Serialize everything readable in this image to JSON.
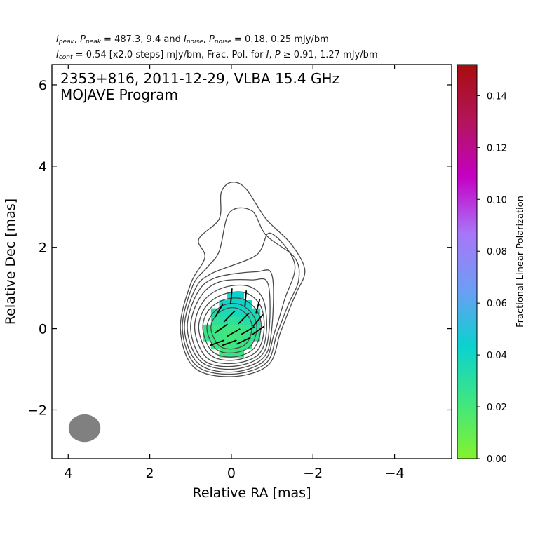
{
  "header": {
    "i_peak_label": "peak",
    "p_peak_label": "peak",
    "i_noise_label": "noise",
    "p_noise_label": "noise",
    "line1_values": " = 487.3, 9.4 and ",
    "line1_noise_values": " = 0.18, 0.25 mJy/bm",
    "cont_label": "cont",
    "line2_text": " = 0.54 [x2.0 steps] mJy/bm, Frac. Pol. for ",
    "line2_tail": " ≥ 0.91, 1.27 mJy/bm"
  },
  "chart_data": {
    "type": "heatmap",
    "title": "2353+816, 2011-12-29, VLBA 15.4 GHz",
    "subtitle": "MOJAVE Program",
    "xlabel": "Relative RA [mas]",
    "ylabel": "Relative Dec [mas]",
    "xlim": [
      4.4,
      -5.4
    ],
    "ylim": [
      -3.2,
      6.5
    ],
    "x_inverted": true,
    "xticks": [
      4,
      2,
      0,
      -2,
      -4
    ],
    "xtick_labels": [
      "4",
      "2",
      "0",
      "−2",
      "−4"
    ],
    "yticks": [
      6,
      4,
      2,
      0,
      -2
    ],
    "ytick_labels": [
      "6",
      "4",
      "2",
      "0",
      "−2"
    ],
    "colorbar": {
      "label": "Fractional Linear Polarization",
      "range": [
        0.0,
        0.152
      ],
      "ticks": [
        0.0,
        0.02,
        0.04,
        0.06,
        0.08,
        0.1,
        0.12,
        0.14
      ],
      "tick_labels": [
        "0.00",
        "0.02",
        "0.04",
        "0.06",
        "0.08",
        "0.10",
        "0.12",
        "0.14"
      ],
      "colors": [
        "#84f22e",
        "#3fe681",
        "#0ad2cf",
        "#6d9df5",
        "#a876f8",
        "#c500c4",
        "#b3155a",
        "#a70d0d"
      ]
    },
    "beam": {
      "x": 3.6,
      "y": -2.45,
      "major_mas": 0.78,
      "minor_mas": 0.68,
      "color": "#808080"
    },
    "contours": [
      [
        [
          0.5,
          0.0
        ],
        [
          0.38,
          0.32
        ],
        [
          0.1,
          0.5
        ],
        [
          -0.2,
          0.48
        ],
        [
          -0.45,
          0.25
        ],
        [
          -0.5,
          -0.05
        ],
        [
          -0.35,
          -0.38
        ],
        [
          0.0,
          -0.5
        ],
        [
          0.32,
          -0.4
        ]
      ],
      [
        [
          0.6,
          0.0
        ],
        [
          0.45,
          0.38
        ],
        [
          0.12,
          0.6
        ],
        [
          -0.25,
          0.58
        ],
        [
          -0.55,
          0.3
        ],
        [
          -0.62,
          -0.05
        ],
        [
          -0.45,
          -0.45
        ],
        [
          0.0,
          -0.6
        ],
        [
          0.4,
          -0.48
        ]
      ],
      [
        [
          0.7,
          0.0
        ],
        [
          0.55,
          0.46
        ],
        [
          0.15,
          0.72
        ],
        [
          -0.3,
          0.72
        ],
        [
          -0.65,
          0.4
        ],
        [
          -0.72,
          -0.05
        ],
        [
          -0.52,
          -0.52
        ],
        [
          0.0,
          -0.7
        ],
        [
          0.48,
          -0.55
        ]
      ],
      [
        [
          0.8,
          0.0
        ],
        [
          0.62,
          0.55
        ],
        [
          0.18,
          0.85
        ],
        [
          -0.35,
          0.88
        ],
        [
          -0.72,
          0.55
        ],
        [
          -0.8,
          -0.05
        ],
        [
          -0.6,
          -0.58
        ],
        [
          0.0,
          -0.78
        ],
        [
          0.55,
          -0.62
        ]
      ],
      [
        [
          0.9,
          0.0
        ],
        [
          0.7,
          0.65
        ],
        [
          0.22,
          1.0
        ],
        [
          -0.4,
          1.05
        ],
        [
          -0.78,
          0.72
        ],
        [
          -0.86,
          -0.08
        ],
        [
          -0.65,
          -0.65
        ],
        [
          0.0,
          -0.86
        ],
        [
          0.62,
          -0.7
        ]
      ],
      [
        [
          1.0,
          0.0
        ],
        [
          0.78,
          0.75
        ],
        [
          0.3,
          1.15
        ],
        [
          -0.5,
          1.2
        ],
        [
          -0.9,
          1.1
        ],
        [
          -0.92,
          -0.1
        ],
        [
          -0.7,
          -0.7
        ],
        [
          0.0,
          -0.93
        ],
        [
          0.7,
          -0.76
        ]
      ],
      [
        [
          1.08,
          0.0
        ],
        [
          0.85,
          0.85
        ],
        [
          0.4,
          1.25
        ],
        [
          -0.6,
          1.4
        ],
        [
          -1.0,
          1.3
        ],
        [
          -0.98,
          -0.1
        ],
        [
          -0.75,
          -0.75
        ],
        [
          0.0,
          -1.0
        ],
        [
          0.76,
          -0.8
        ]
      ],
      [
        [
          1.15,
          0.0
        ],
        [
          0.9,
          0.95
        ],
        [
          0.5,
          1.35
        ],
        [
          -0.6,
          1.8
        ],
        [
          -0.95,
          2.35
        ],
        [
          -1.55,
          1.6
        ],
        [
          -1.3,
          0.7
        ],
        [
          -1.05,
          -0.12
        ],
        [
          -0.8,
          -0.8
        ],
        [
          0.0,
          -1.07
        ],
        [
          0.82,
          -0.85
        ]
      ],
      [
        [
          1.2,
          0.0
        ],
        [
          0.95,
          1.05
        ],
        [
          0.6,
          1.5
        ],
        [
          0.3,
          1.9
        ],
        [
          0.05,
          2.85
        ],
        [
          -0.5,
          2.9
        ],
        [
          -0.85,
          2.3
        ],
        [
          -1.55,
          1.75
        ],
        [
          -1.65,
          1.2
        ],
        [
          -1.4,
          0.6
        ],
        [
          -1.12,
          -0.12
        ],
        [
          -0.85,
          -0.85
        ],
        [
          0.0,
          -1.12
        ],
        [
          0.87,
          -0.9
        ]
      ],
      [
        [
          1.25,
          0.0
        ],
        [
          1.0,
          1.1
        ],
        [
          0.65,
          1.75
        ],
        [
          0.8,
          2.2
        ],
        [
          0.3,
          2.7
        ],
        [
          0.25,
          3.35
        ],
        [
          0.0,
          3.6
        ],
        [
          -0.35,
          3.45
        ],
        [
          -0.85,
          2.7
        ],
        [
          -1.45,
          2.1
        ],
        [
          -1.8,
          1.45
        ],
        [
          -1.6,
          0.9
        ],
        [
          -1.45,
          0.55
        ],
        [
          -1.2,
          -0.1
        ],
        [
          -0.9,
          -0.9
        ],
        [
          0.0,
          -1.18
        ],
        [
          0.92,
          -0.95
        ]
      ]
    ],
    "polarization_pixels": [
      {
        "x": 0.0,
        "y": 0.0,
        "v": 0.022
      },
      {
        "x": -0.2,
        "y": 0.0,
        "v": 0.022
      },
      {
        "x": 0.2,
        "y": 0.0,
        "v": 0.022
      },
      {
        "x": 0.0,
        "y": 0.2,
        "v": 0.028
      },
      {
        "x": -0.2,
        "y": 0.2,
        "v": 0.03
      },
      {
        "x": 0.2,
        "y": 0.2,
        "v": 0.03
      },
      {
        "x": 0.0,
        "y": -0.2,
        "v": 0.02
      },
      {
        "x": -0.2,
        "y": -0.2,
        "v": 0.022
      },
      {
        "x": 0.2,
        "y": -0.2,
        "v": 0.022
      },
      {
        "x": -0.4,
        "y": 0.0,
        "v": 0.025
      },
      {
        "x": 0.4,
        "y": 0.0,
        "v": 0.022
      },
      {
        "x": -0.6,
        "y": 0.0,
        "v": 0.028
      },
      {
        "x": 0.4,
        "y": -0.2,
        "v": 0.023
      },
      {
        "x": -0.4,
        "y": -0.2,
        "v": 0.024
      },
      {
        "x": -0.6,
        "y": -0.2,
        "v": 0.026
      },
      {
        "x": 0.4,
        "y": 0.2,
        "v": 0.028
      },
      {
        "x": -0.4,
        "y": 0.2,
        "v": 0.032
      },
      {
        "x": -0.6,
        "y": 0.2,
        "v": 0.034
      },
      {
        "x": 0.0,
        "y": 0.4,
        "v": 0.036
      },
      {
        "x": -0.2,
        "y": 0.4,
        "v": 0.038
      },
      {
        "x": 0.2,
        "y": 0.4,
        "v": 0.035
      },
      {
        "x": -0.4,
        "y": 0.4,
        "v": 0.038
      },
      {
        "x": 0.4,
        "y": 0.4,
        "v": 0.033
      },
      {
        "x": 0.0,
        "y": 0.6,
        "v": 0.04
      },
      {
        "x": -0.2,
        "y": 0.6,
        "v": 0.042
      },
      {
        "x": 0.2,
        "y": 0.6,
        "v": 0.04
      },
      {
        "x": -0.4,
        "y": 0.6,
        "v": 0.04
      },
      {
        "x": 0.0,
        "y": 0.8,
        "v": 0.042
      },
      {
        "x": -0.2,
        "y": 0.8,
        "v": 0.044
      },
      {
        "x": 0.0,
        "y": -0.4,
        "v": 0.022
      },
      {
        "x": -0.2,
        "y": -0.4,
        "v": 0.022
      },
      {
        "x": 0.2,
        "y": -0.4,
        "v": 0.02
      },
      {
        "x": -0.4,
        "y": -0.4,
        "v": 0.024
      },
      {
        "x": 0.4,
        "y": -0.4,
        "v": 0.022
      },
      {
        "x": 0.0,
        "y": -0.6,
        "v": 0.024
      },
      {
        "x": -0.2,
        "y": -0.6,
        "v": 0.024
      },
      {
        "x": 0.2,
        "y": -0.6,
        "v": 0.022
      },
      {
        "x": -0.6,
        "y": 0.4,
        "v": 0.036
      },
      {
        "x": 0.6,
        "y": 0.0,
        "v": 0.024
      },
      {
        "x": 0.6,
        "y": -0.2,
        "v": 0.024
      }
    ],
    "evpa_sticks": [
      {
        "x": 0.0,
        "y": 0.8,
        "angle_deg": 85
      },
      {
        "x": -0.35,
        "y": 0.75,
        "angle_deg": 85
      },
      {
        "x": -0.65,
        "y": 0.55,
        "angle_deg": 75
      },
      {
        "x": 0.3,
        "y": 0.45,
        "angle_deg": 60
      },
      {
        "x": 0.05,
        "y": 0.3,
        "angle_deg": 45
      },
      {
        "x": -0.3,
        "y": 0.25,
        "angle_deg": 45
      },
      {
        "x": -0.65,
        "y": 0.2,
        "angle_deg": 50
      },
      {
        "x": 0.25,
        "y": 0.0,
        "angle_deg": 35
      },
      {
        "x": -0.05,
        "y": -0.1,
        "angle_deg": 30
      },
      {
        "x": -0.4,
        "y": -0.05,
        "angle_deg": 30
      },
      {
        "x": -0.65,
        "y": -0.05,
        "angle_deg": 35
      },
      {
        "x": 0.35,
        "y": -0.35,
        "angle_deg": 20
      },
      {
        "x": 0.05,
        "y": -0.35,
        "angle_deg": 20
      },
      {
        "x": -0.3,
        "y": -0.3,
        "angle_deg": 25
      }
    ]
  }
}
